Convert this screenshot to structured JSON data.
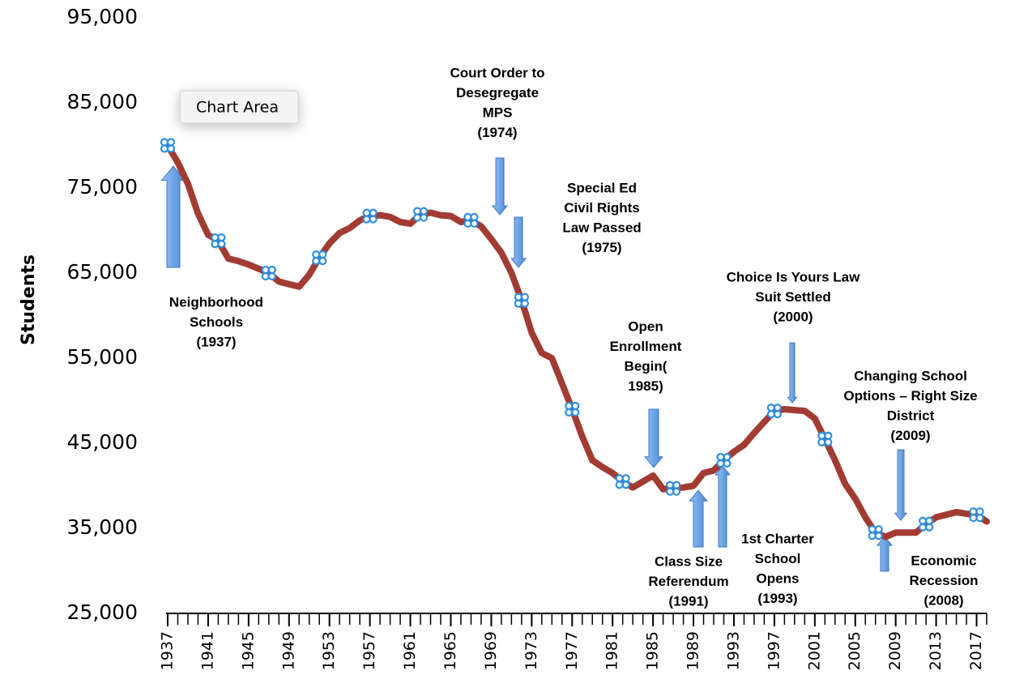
{
  "chart_data": {
    "type": "line",
    "y_label": "Students",
    "tooltip": "Chart Area",
    "x": [
      1937,
      1938,
      1939,
      1940,
      1941,
      1942,
      1943,
      1944,
      1945,
      1946,
      1947,
      1948,
      1949,
      1950,
      1951,
      1952,
      1953,
      1954,
      1955,
      1956,
      1957,
      1958,
      1959,
      1960,
      1961,
      1962,
      1963,
      1964,
      1965,
      1966,
      1967,
      1968,
      1969,
      1970,
      1971,
      1972,
      1973,
      1974,
      1975,
      1976,
      1977,
      1978,
      1979,
      1980,
      1981,
      1982,
      1983,
      1984,
      1985,
      1986,
      1987,
      1988,
      1989,
      1990,
      1991,
      1992,
      1993,
      1994,
      1995,
      1996,
      1997,
      1998,
      1999,
      2000,
      2001,
      2002,
      2003,
      2004,
      2005,
      2006,
      2007,
      2008,
      2009,
      2010,
      2011,
      2012,
      2013,
      2014,
      2015,
      2016,
      2017,
      2018
    ],
    "series": [
      {
        "name": "Students",
        "color": "#a23b32",
        "values": [
          80000,
          78000,
          75500,
          72000,
          69500,
          68800,
          66700,
          66400,
          66000,
          65500,
          65000,
          64000,
          63700,
          63400,
          64800,
          66800,
          68500,
          69700,
          70300,
          71200,
          71700,
          71800,
          71600,
          71000,
          70800,
          71900,
          72100,
          71800,
          71700,
          71000,
          71200,
          70500,
          69000,
          67400,
          65000,
          61800,
          58000,
          55600,
          55000,
          52000,
          49000,
          45800,
          43000,
          42200,
          41500,
          40500,
          39800,
          40500,
          41200,
          39600,
          39700,
          39800,
          40000,
          41500,
          41800,
          43000,
          44000,
          44800,
          46200,
          47500,
          48800,
          49000,
          48900,
          48800,
          47900,
          45500,
          43000,
          40200,
          38500,
          36300,
          34500,
          34000,
          34500,
          34500,
          34500,
          35500,
          36300,
          36600,
          36900,
          36700,
          36600,
          35800
        ]
      }
    ],
    "xlim": [
      1937,
      2018
    ],
    "xticks": [
      1937,
      1941,
      1945,
      1949,
      1953,
      1957,
      1961,
      1965,
      1969,
      1973,
      1977,
      1981,
      1985,
      1989,
      1993,
      1997,
      2001,
      2005,
      2009,
      2013,
      2017
    ],
    "ylim": [
      25000,
      95000
    ],
    "yticks": [
      {
        "value": 25000,
        "label": "25,000"
      },
      {
        "value": 35000,
        "label": "35,000"
      },
      {
        "value": 45000,
        "label": "45,000"
      },
      {
        "value": 55000,
        "label": "55,000"
      },
      {
        "value": 65000,
        "label": "65,000"
      },
      {
        "value": 75000,
        "label": "75,000"
      },
      {
        "value": 85000,
        "label": "85,000"
      },
      {
        "value": 95000,
        "label": "95,000"
      }
    ],
    "grid": false,
    "annotations": [
      {
        "lines": [
          "Neighborhood",
          "Schools",
          "(1937)"
        ]
      },
      {
        "lines": [
          "Court Order to",
          "Desegregate",
          "MPS",
          "(1974)"
        ]
      },
      {
        "lines": [
          "Special Ed",
          "Civil Rights",
          "Law Passed",
          "(1975)"
        ]
      },
      {
        "lines": [
          "Choice Is Yours Law",
          "Suit Settled",
          "(2000)"
        ]
      },
      {
        "lines": [
          "Open",
          "Enrollment",
          "Begin(",
          "1985)"
        ]
      },
      {
        "lines": [
          "Changing School",
          "Options – Right Size",
          "District",
          "(2009)"
        ]
      },
      {
        "lines": [
          "Class Size",
          "Referendum",
          "(1991)"
        ]
      },
      {
        "lines": [
          "1st Charter",
          "School",
          "Opens",
          "(1993)"
        ]
      },
      {
        "lines": [
          "Economic",
          "Recession",
          "(2008)"
        ]
      }
    ]
  }
}
